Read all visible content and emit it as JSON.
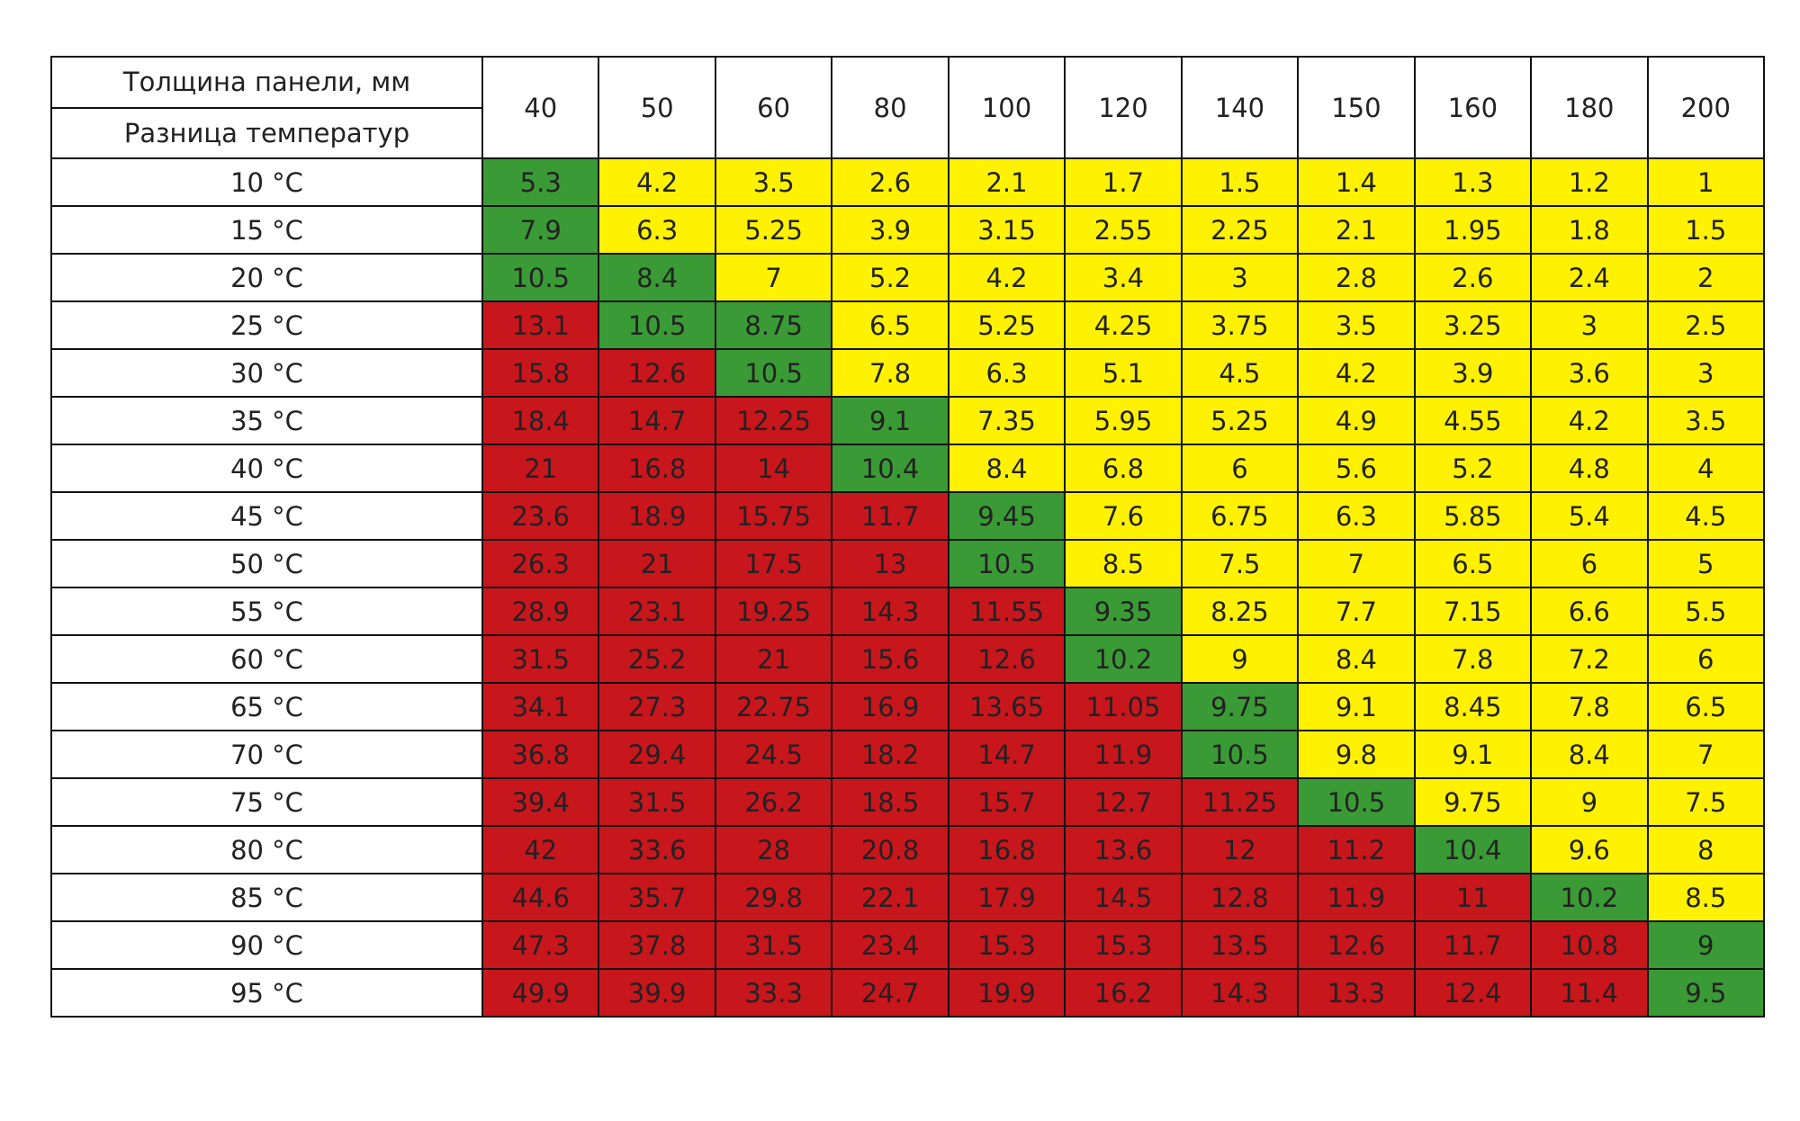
{
  "palette": {
    "red": "#c8161d",
    "green": "#3a9a35",
    "yellow": "#fff200",
    "white": "#ffffff"
  },
  "table": {
    "header": {
      "thickness_label": "Толщина панели, мм",
      "difference_label": "Разница температур",
      "columns": [
        "40",
        "50",
        "60",
        "80",
        "100",
        "120",
        "140",
        "150",
        "160",
        "180",
        "200"
      ]
    },
    "rows": [
      {
        "label": "10 °C",
        "values": [
          "5.3",
          "4.2",
          "3.5",
          "2.6",
          "2.1",
          "1.7",
          "1.5",
          "1.4",
          "1.3",
          "1.2",
          "1"
        ],
        "colors": [
          "green",
          "yellow",
          "yellow",
          "yellow",
          "yellow",
          "yellow",
          "yellow",
          "yellow",
          "yellow",
          "yellow",
          "yellow"
        ]
      },
      {
        "label": "15 °C",
        "values": [
          "7.9",
          "6.3",
          "5.25",
          "3.9",
          "3.15",
          "2.55",
          "2.25",
          "2.1",
          "1.95",
          "1.8",
          "1.5"
        ],
        "colors": [
          "green",
          "yellow",
          "yellow",
          "yellow",
          "yellow",
          "yellow",
          "yellow",
          "yellow",
          "yellow",
          "yellow",
          "yellow"
        ]
      },
      {
        "label": "20 °C",
        "values": [
          "10.5",
          "8.4",
          "7",
          "5.2",
          "4.2",
          "3.4",
          "3",
          "2.8",
          "2.6",
          "2.4",
          "2"
        ],
        "colors": [
          "green",
          "green",
          "yellow",
          "yellow",
          "yellow",
          "yellow",
          "yellow",
          "yellow",
          "yellow",
          "yellow",
          "yellow"
        ]
      },
      {
        "label": "25 °C",
        "values": [
          "13.1",
          "10.5",
          "8.75",
          "6.5",
          "5.25",
          "4.25",
          "3.75",
          "3.5",
          "3.25",
          "3",
          "2.5"
        ],
        "colors": [
          "red",
          "green",
          "green",
          "yellow",
          "yellow",
          "yellow",
          "yellow",
          "yellow",
          "yellow",
          "yellow",
          "yellow"
        ]
      },
      {
        "label": "30 °C",
        "values": [
          "15.8",
          "12.6",
          "10.5",
          "7.8",
          "6.3",
          "5.1",
          "4.5",
          "4.2",
          "3.9",
          "3.6",
          "3"
        ],
        "colors": [
          "red",
          "red",
          "green",
          "yellow",
          "yellow",
          "yellow",
          "yellow",
          "yellow",
          "yellow",
          "yellow",
          "yellow"
        ]
      },
      {
        "label": "35 °C",
        "values": [
          "18.4",
          "14.7",
          "12.25",
          "9.1",
          "7.35",
          "5.95",
          "5.25",
          "4.9",
          "4.55",
          "4.2",
          "3.5"
        ],
        "colors": [
          "red",
          "red",
          "red",
          "green",
          "yellow",
          "yellow",
          "yellow",
          "yellow",
          "yellow",
          "yellow",
          "yellow"
        ]
      },
      {
        "label": "40 °C",
        "values": [
          "21",
          "16.8",
          "14",
          "10.4",
          "8.4",
          "6.8",
          "6",
          "5.6",
          "5.2",
          "4.8",
          "4"
        ],
        "colors": [
          "red",
          "red",
          "red",
          "green",
          "yellow",
          "yellow",
          "yellow",
          "yellow",
          "yellow",
          "yellow",
          "yellow"
        ]
      },
      {
        "label": "45 °C",
        "values": [
          "23.6",
          "18.9",
          "15.75",
          "11.7",
          "9.45",
          "7.6",
          "6.75",
          "6.3",
          "5.85",
          "5.4",
          "4.5"
        ],
        "colors": [
          "red",
          "red",
          "red",
          "red",
          "green",
          "yellow",
          "yellow",
          "yellow",
          "yellow",
          "yellow",
          "yellow"
        ]
      },
      {
        "label": "50 °C",
        "values": [
          "26.3",
          "21",
          "17.5",
          "13",
          "10.5",
          "8.5",
          "7.5",
          "7",
          "6.5",
          "6",
          "5"
        ],
        "colors": [
          "red",
          "red",
          "red",
          "red",
          "green",
          "yellow",
          "yellow",
          "yellow",
          "yellow",
          "yellow",
          "yellow"
        ]
      },
      {
        "label": "55 °C",
        "values": [
          "28.9",
          "23.1",
          "19.25",
          "14.3",
          "11.55",
          "9.35",
          "8.25",
          "7.7",
          "7.15",
          "6.6",
          "5.5"
        ],
        "colors": [
          "red",
          "red",
          "red",
          "red",
          "red",
          "green",
          "yellow",
          "yellow",
          "yellow",
          "yellow",
          "yellow"
        ]
      },
      {
        "label": "60 °C",
        "values": [
          "31.5",
          "25.2",
          "21",
          "15.6",
          "12.6",
          "10.2",
          "9",
          "8.4",
          "7.8",
          "7.2",
          "6"
        ],
        "colors": [
          "red",
          "red",
          "red",
          "red",
          "red",
          "green",
          "yellow",
          "yellow",
          "yellow",
          "yellow",
          "yellow"
        ]
      },
      {
        "label": "65 °C",
        "values": [
          "34.1",
          "27.3",
          "22.75",
          "16.9",
          "13.65",
          "11.05",
          "9.75",
          "9.1",
          "8.45",
          "7.8",
          "6.5"
        ],
        "colors": [
          "red",
          "red",
          "red",
          "red",
          "red",
          "red",
          "green",
          "yellow",
          "yellow",
          "yellow",
          "yellow"
        ]
      },
      {
        "label": "70 °C",
        "values": [
          "36.8",
          "29.4",
          "24.5",
          "18.2",
          "14.7",
          "11.9",
          "10.5",
          "9.8",
          "9.1",
          "8.4",
          "7"
        ],
        "colors": [
          "red",
          "red",
          "red",
          "red",
          "red",
          "red",
          "green",
          "yellow",
          "yellow",
          "yellow",
          "yellow"
        ]
      },
      {
        "label": "75 °C",
        "values": [
          "39.4",
          "31.5",
          "26.2",
          "18.5",
          "15.7",
          "12.7",
          "11.25",
          "10.5",
          "9.75",
          "9",
          "7.5"
        ],
        "colors": [
          "red",
          "red",
          "red",
          "red",
          "red",
          "red",
          "red",
          "green",
          "yellow",
          "yellow",
          "yellow"
        ]
      },
      {
        "label": "80 °C",
        "values": [
          "42",
          "33.6",
          "28",
          "20.8",
          "16.8",
          "13.6",
          "12",
          "11.2",
          "10.4",
          "9.6",
          "8"
        ],
        "colors": [
          "red",
          "red",
          "red",
          "red",
          "red",
          "red",
          "red",
          "red",
          "green",
          "yellow",
          "yellow"
        ]
      },
      {
        "label": "85 °C",
        "values": [
          "44.6",
          "35.7",
          "29.8",
          "22.1",
          "17.9",
          "14.5",
          "12.8",
          "11.9",
          "11",
          "10.2",
          "8.5"
        ],
        "colors": [
          "red",
          "red",
          "red",
          "red",
          "red",
          "red",
          "red",
          "red",
          "red",
          "green",
          "yellow"
        ]
      },
      {
        "label": "90 °C",
        "values": [
          "47.3",
          "37.8",
          "31.5",
          "23.4",
          "15.3",
          "15.3",
          "13.5",
          "12.6",
          "11.7",
          "10.8",
          "9"
        ],
        "colors": [
          "red",
          "red",
          "red",
          "red",
          "red",
          "red",
          "red",
          "red",
          "red",
          "red",
          "green"
        ]
      },
      {
        "label": "95 °C",
        "values": [
          "49.9",
          "39.9",
          "33.3",
          "24.7",
          "19.9",
          "16.2",
          "14.3",
          "13.3",
          "12.4",
          "11.4",
          "9.5"
        ],
        "colors": [
          "red",
          "red",
          "red",
          "red",
          "red",
          "red",
          "red",
          "red",
          "red",
          "red",
          "green"
        ]
      }
    ]
  }
}
